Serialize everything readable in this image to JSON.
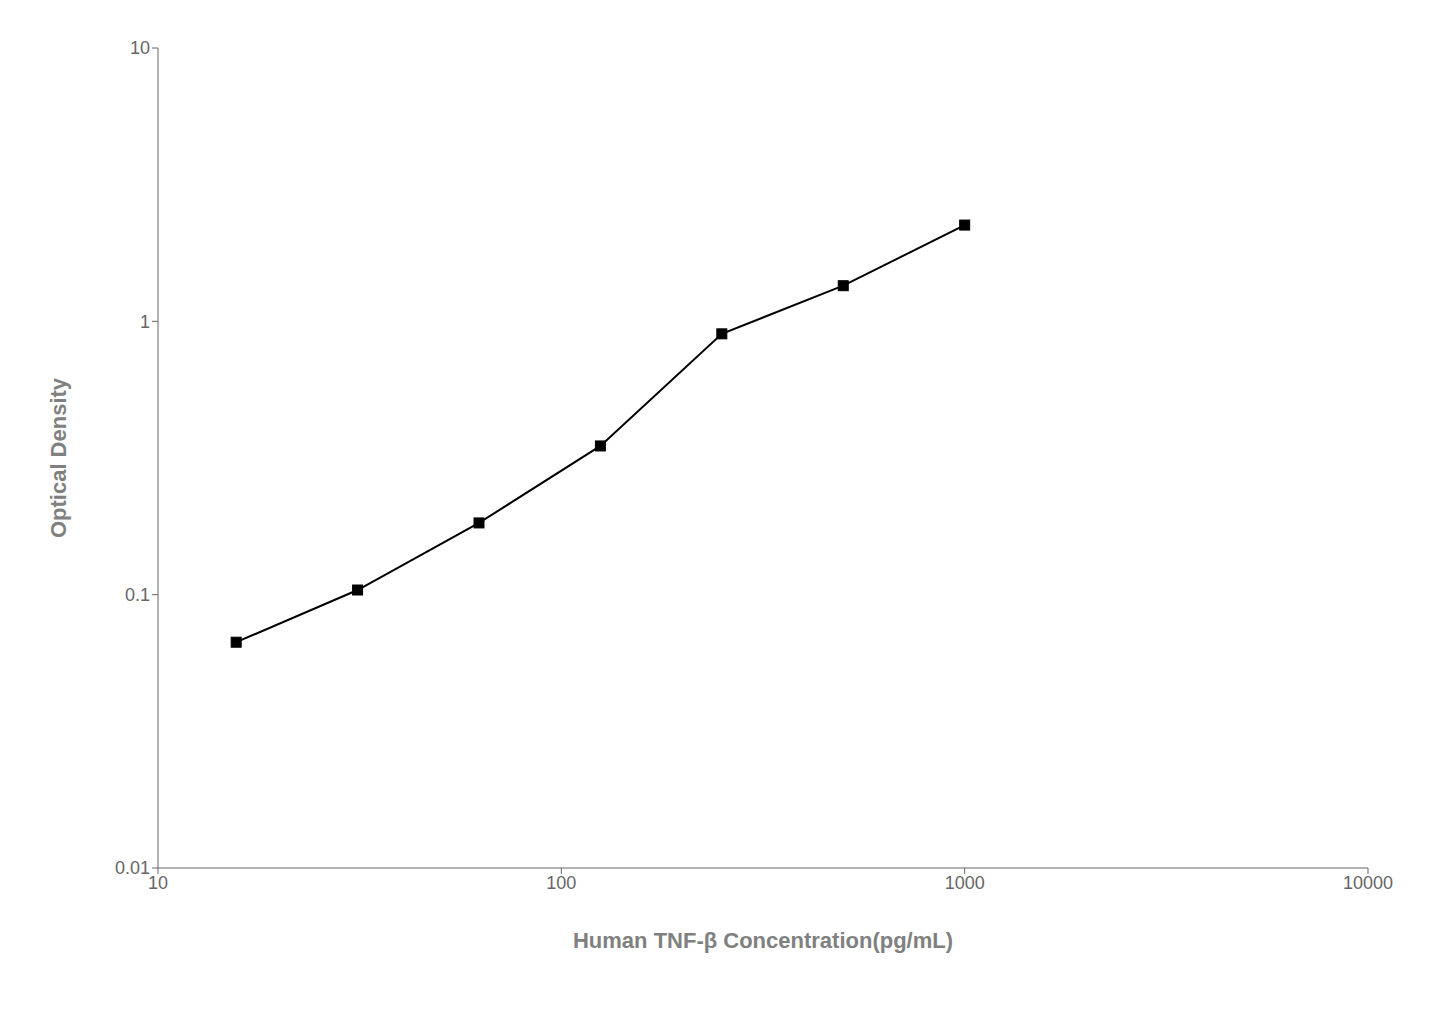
{
  "chart_data": {
    "type": "line",
    "x": [
      15.625,
      31.25,
      62.5,
      125,
      250,
      500,
      1000
    ],
    "values": [
      0.067,
      0.104,
      0.183,
      0.35,
      0.9,
      1.35,
      2.25
    ],
    "xlabel": "Human TNF-β Concentration(pg/mL)",
    "ylabel": "Optical Density",
    "xlim": [
      10,
      10000
    ],
    "ylim": [
      0.01,
      10
    ],
    "xticks": [
      10,
      100,
      1000,
      10000
    ],
    "yticks": [
      0.01,
      0.1,
      1,
      10
    ],
    "log": true,
    "color": "#000000",
    "marker": "square",
    "grid": false
  }
}
